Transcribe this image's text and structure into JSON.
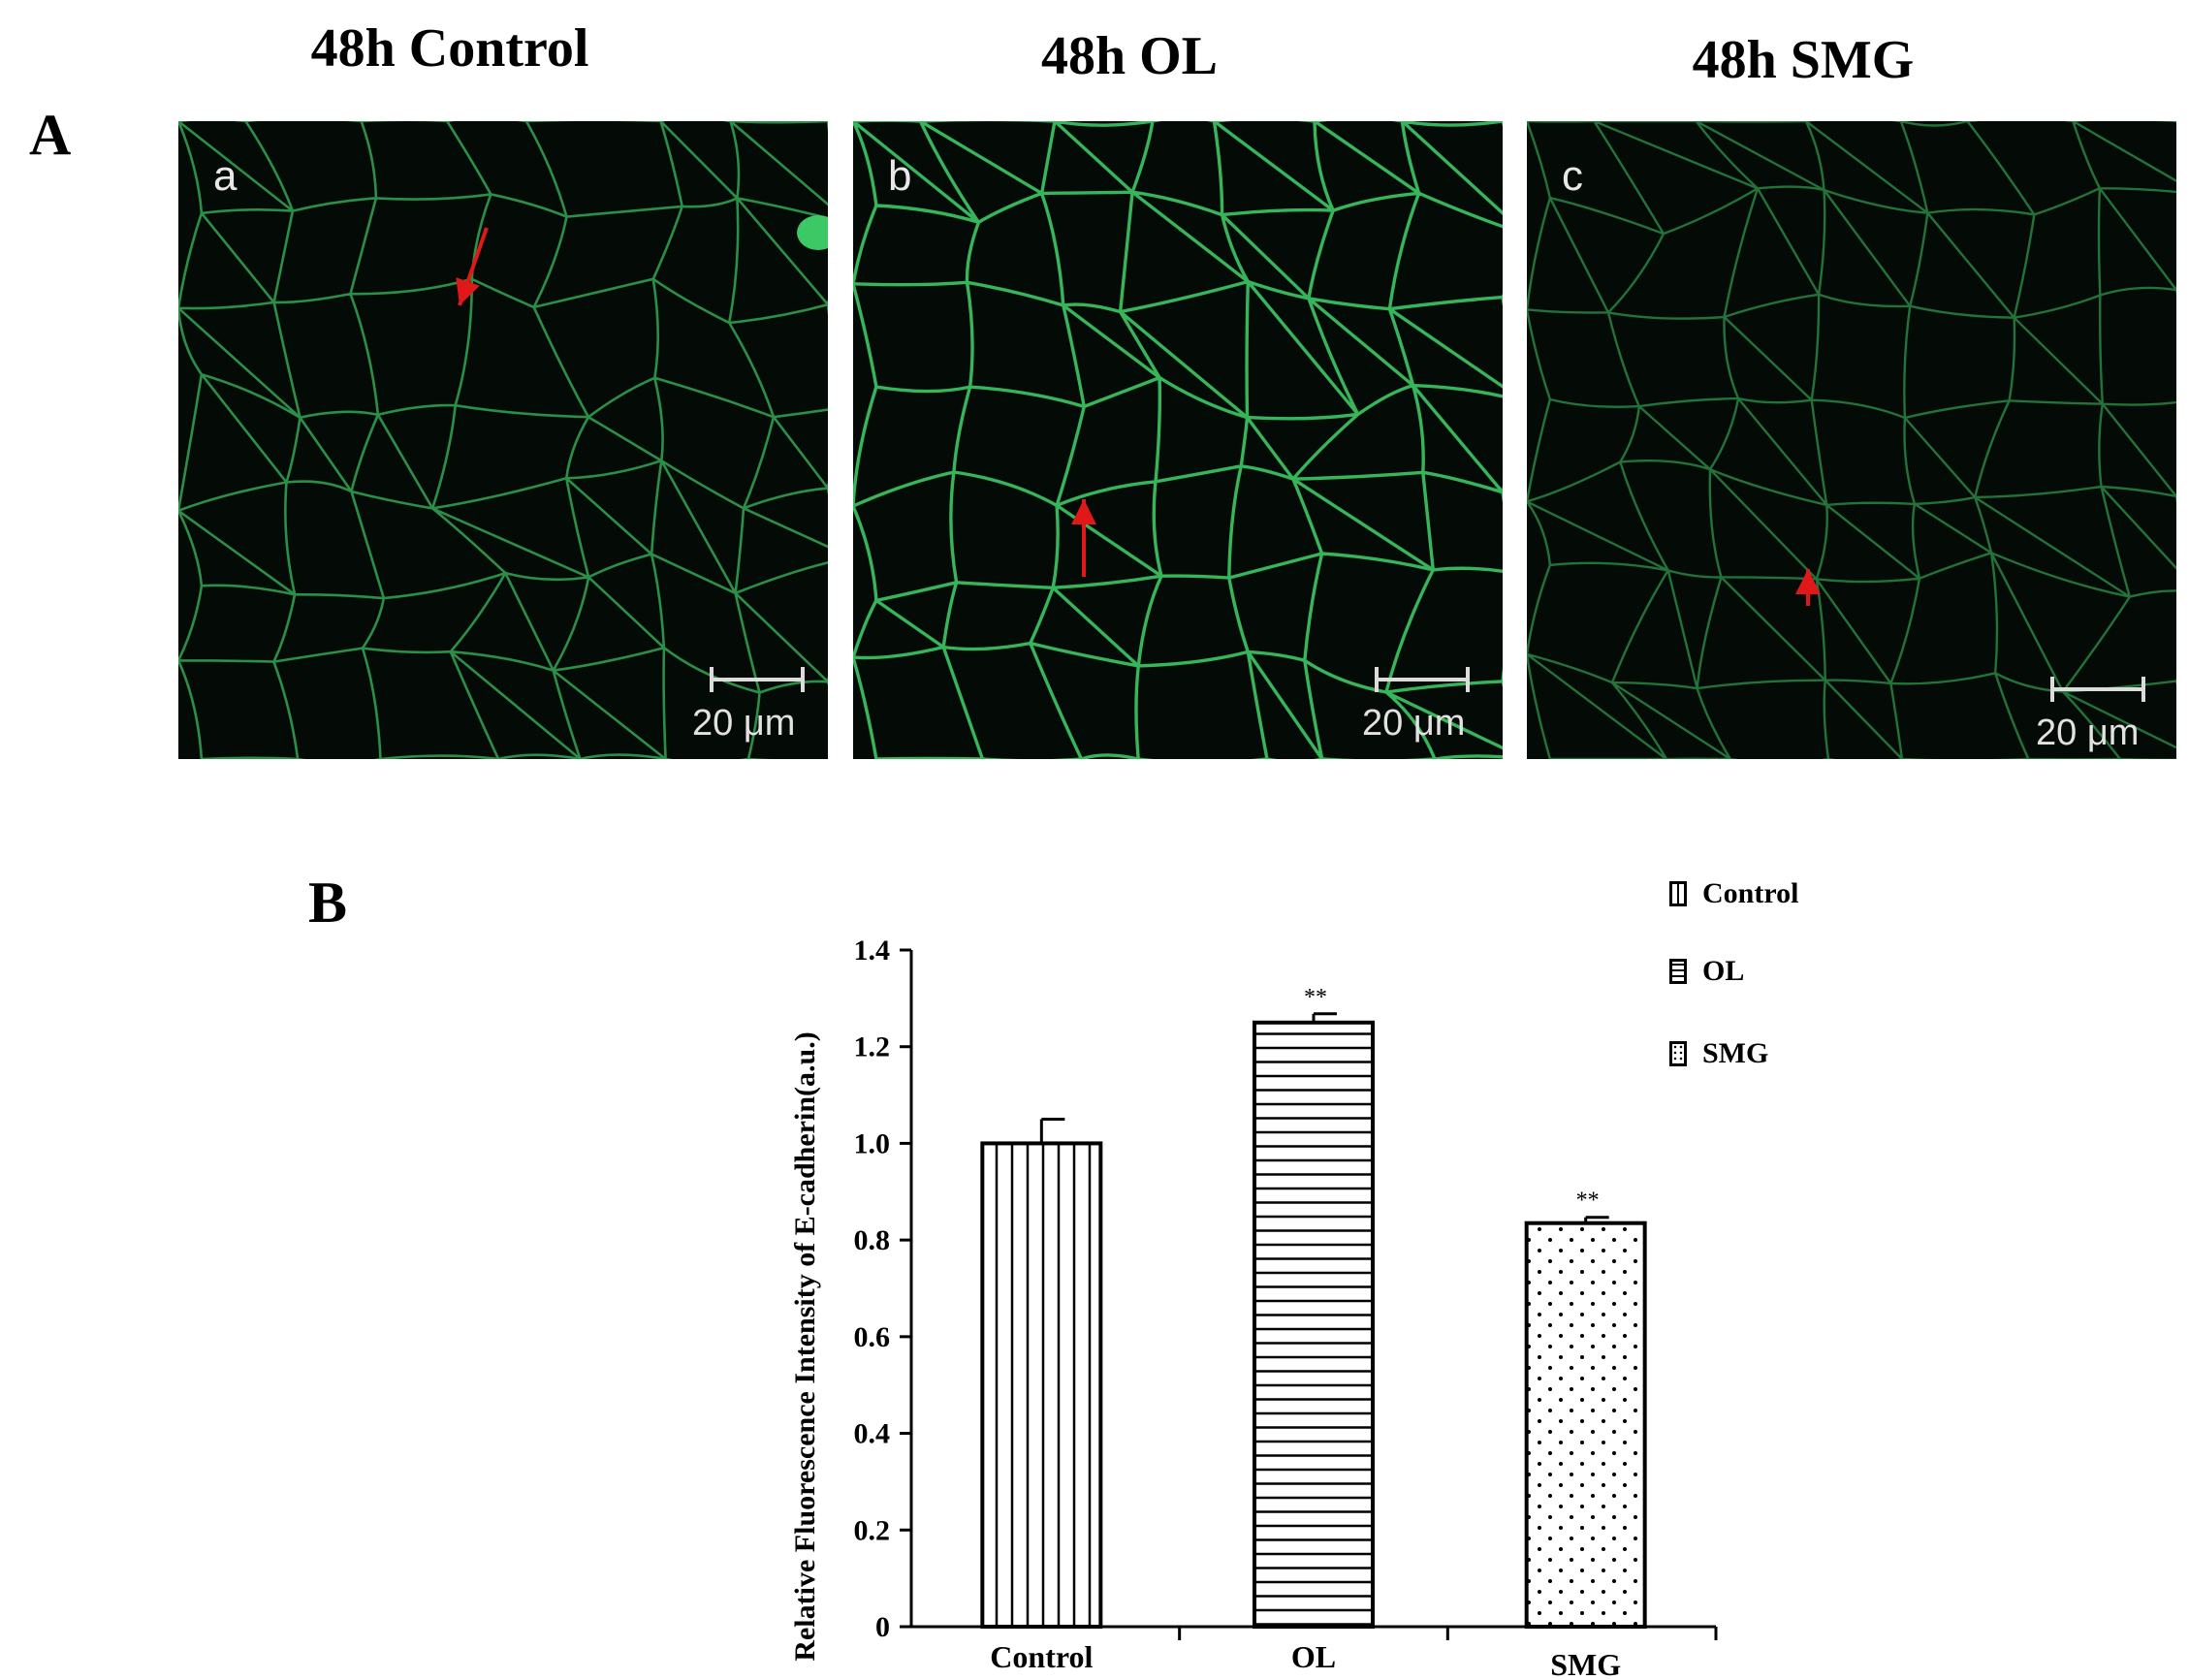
{
  "panel_a": {
    "letter": "A",
    "columns": [
      {
        "title": "48h Control",
        "sub_letter": "a",
        "scale_label": "20 μm"
      },
      {
        "title": "48h OL",
        "sub_letter": "b",
        "scale_label": "20 μm"
      },
      {
        "title": "48h SMG",
        "sub_letter": "c",
        "scale_label": "20 μm"
      }
    ]
  },
  "panel_b": {
    "letter": "B"
  },
  "colors": {
    "membrane_stain": "#3cc864",
    "arrow": "#e01818",
    "background": "#040a06"
  },
  "chart_data": {
    "type": "bar",
    "categories": [
      "Control",
      "OL",
      "SMG"
    ],
    "values": [
      1.0,
      1.25,
      0.835
    ],
    "errors": [
      0.05,
      0.018,
      0.012
    ],
    "annotations": [
      "",
      "**",
      "**"
    ],
    "patterns": [
      "vertical-lines",
      "horizontal-lines",
      "dots"
    ],
    "ylabel": "Relative Fluorescence Intensity of E-cadherin(a.u.)",
    "xlabel": "",
    "ylim": [
      0,
      1.4
    ],
    "yticks": [
      0,
      0.2,
      0.4,
      0.6,
      0.8,
      1.0,
      1.2,
      1.4
    ],
    "ytick_labels": [
      "0",
      "0.2",
      "0.4",
      "0.6",
      "0.8",
      "1.0",
      "1.2",
      "1.4"
    ],
    "legend": {
      "position": "top-right",
      "entries": [
        "Control",
        "OL",
        "SMG"
      ]
    },
    "grid": false
  }
}
